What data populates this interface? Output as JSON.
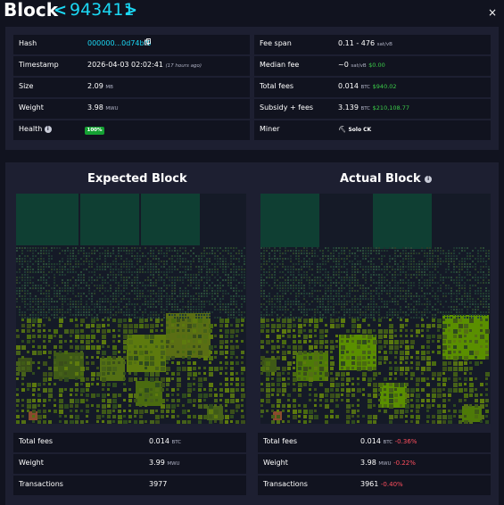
{
  "header": {
    "title": "Block",
    "prev": "<",
    "height": "943411",
    "next": ">",
    "close": "×"
  },
  "left": {
    "hash_label": "Hash",
    "hash_value": "000000...0d74bf0",
    "timestamp_label": "Timestamp",
    "timestamp_value": "2026-04-03 02:02:41",
    "timestamp_ago": "(17 hours ago)",
    "size_label": "Size",
    "size_value": "2.09",
    "size_unit": "MB",
    "weight_label": "Weight",
    "weight_value": "3.98",
    "weight_unit": "MWU",
    "health_label": "Health",
    "health_value": "100%"
  },
  "right": {
    "fee_span_label": "Fee span",
    "fee_span_value": "0.11 - 476",
    "fee_span_unit": "sat/vB",
    "median_label": "Median fee",
    "median_value": "~0",
    "median_unit": "sat/vB",
    "median_usd": "$0.00",
    "total_fees_label": "Total fees",
    "total_fees_value": "0.014",
    "total_fees_unit": "BTC",
    "total_fees_usd": "$940.02",
    "subsidy_label": "Subsidy + fees",
    "subsidy_value": "3.139",
    "subsidy_unit": "BTC",
    "subsidy_usd": "$210,108.77",
    "miner_label": "Miner",
    "miner_value": "Solo CK"
  },
  "expected": {
    "title": "Expected Block",
    "total_fees_label": "Total fees",
    "total_fees_value": "0.014",
    "total_fees_unit": "BTC",
    "weight_label": "Weight",
    "weight_value": "3.99",
    "weight_unit": "MWU",
    "tx_label": "Transactions",
    "tx_value": "3977"
  },
  "actual": {
    "title": "Actual Block",
    "total_fees_label": "Total fees",
    "total_fees_value": "0.014",
    "total_fees_unit": "BTC",
    "total_fees_diff": "-0.36%",
    "weight_label": "Weight",
    "weight_value": "3.98",
    "weight_unit": "MWU",
    "weight_diff": "-0.22%",
    "tx_label": "Transactions",
    "tx_value": "3961",
    "tx_diff": "-0.40%"
  },
  "colors": {
    "accent": "#1bd8f4",
    "positive": "#3bcc49",
    "negative": "#ff4f5e",
    "health_badge": "#15a133"
  }
}
